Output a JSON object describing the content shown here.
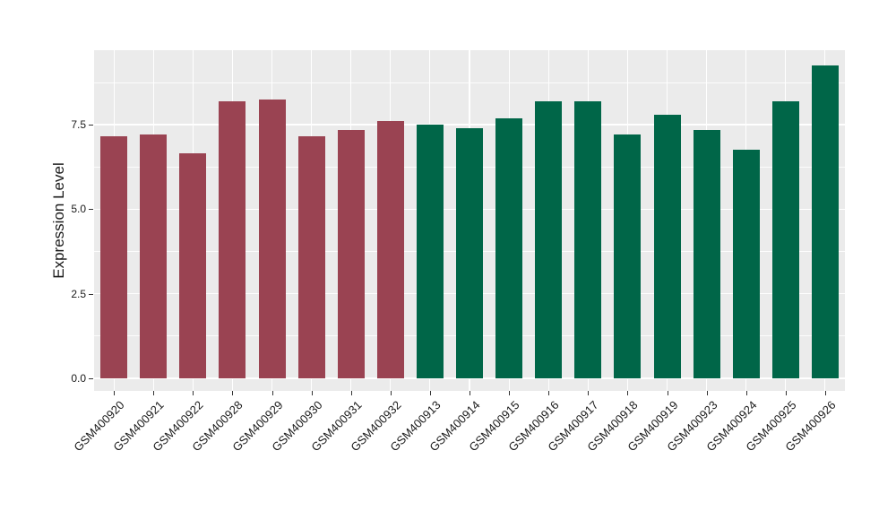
{
  "figure": {
    "background_color": "#ffffff",
    "panel_background_color": "#ebebeb",
    "gridline_color": "#ffffff",
    "tick_mark_color": "#333333",
    "text_color": "#1a1a1a",
    "group_colors": {
      "left_group": "#9a4352",
      "right_group": "#006648"
    }
  },
  "chart_data": {
    "type": "bar",
    "title": "",
    "xlabel": "",
    "ylabel": "Expression Level",
    "ylim": [
      0,
      9.7
    ],
    "grid": "major+minor, white on gray panel",
    "legend": "none",
    "yticks": [
      0,
      2.5,
      5,
      7.5
    ],
    "ytick_labels": [
      "0.0",
      "2.5",
      "5.0",
      "7.5"
    ],
    "minor_yticks": [
      1.25,
      3.75,
      6.25,
      8.75
    ],
    "categories": [
      "GSM400920",
      "GSM400921",
      "GSM400922",
      "GSM400928",
      "GSM400929",
      "GSM400930",
      "GSM400931",
      "GSM400932",
      "GSM400913",
      "GSM400914",
      "GSM400915",
      "GSM400916",
      "GSM400917",
      "GSM400918",
      "GSM400919",
      "GSM400923",
      "GSM400924",
      "GSM400925",
      "GSM400926"
    ],
    "values": [
      7.15,
      7.2,
      6.65,
      8.2,
      8.25,
      7.15,
      7.35,
      7.6,
      7.5,
      7.4,
      7.7,
      8.2,
      8.2,
      7.2,
      7.8,
      7.35,
      6.75,
      8.2,
      9.25
    ],
    "bar_colors": [
      "#9a4352",
      "#9a4352",
      "#9a4352",
      "#9a4352",
      "#9a4352",
      "#9a4352",
      "#9a4352",
      "#9a4352",
      "#006648",
      "#006648",
      "#006648",
      "#006648",
      "#006648",
      "#006648",
      "#006648",
      "#006648",
      "#006648",
      "#006648",
      "#006648"
    ]
  }
}
